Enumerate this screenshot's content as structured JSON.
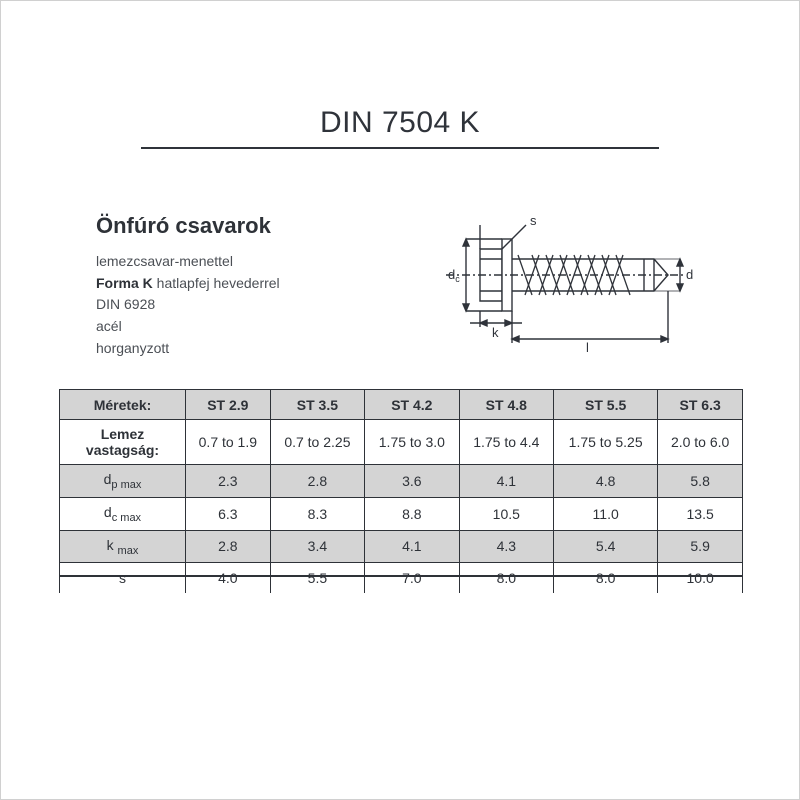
{
  "title": "DIN 7504 K",
  "subtitle": "Önfúró csavarok",
  "description": {
    "line1": "lemezcsavar-menettel",
    "line2_bold": "Forma K",
    "line2_rest": " hatlapfej hevederrel",
    "line3": "DIN 6928",
    "line4": "acél",
    "line5": "horganyzott"
  },
  "diagram": {
    "labels": {
      "s": "s",
      "dc": "d",
      "dc_sub": "c",
      "d": "d",
      "k": "k",
      "l": "l"
    },
    "colors": {
      "stroke": "#2f333a",
      "fill": "#ffffff"
    }
  },
  "table": {
    "header_label": "Méretek:",
    "columns": [
      "ST 2.9",
      "ST 3.5",
      "ST 4.2",
      "ST 4.8",
      "ST 5.5",
      "ST 6.3"
    ],
    "rows": [
      {
        "label_html": "Lemez vastagság:",
        "bold": true,
        "alt": false,
        "cells": [
          "0.7 to 1.9",
          "0.7 to 2.25",
          "1.75 to 3.0",
          "1.75 to 4.4",
          "1.75 to 5.25",
          "2.0 to 6.0"
        ]
      },
      {
        "label_html": "d<span class='sub'>p max</span>",
        "bold": false,
        "alt": true,
        "cells": [
          "2.3",
          "2.8",
          "3.6",
          "4.1",
          "4.8",
          "5.8"
        ]
      },
      {
        "label_html": "d<span class='sub'>c max</span>",
        "bold": false,
        "alt": false,
        "cells": [
          "6.3",
          "8.3",
          "8.8",
          "10.5",
          "11.0",
          "13.5"
        ]
      },
      {
        "label_html": "k <span class='sub'>max</span>",
        "bold": false,
        "alt": true,
        "cells": [
          "2.8",
          "3.4",
          "4.1",
          "4.3",
          "5.4",
          "5.9"
        ]
      },
      {
        "label_html": "s",
        "bold": false,
        "alt": false,
        "cells": [
          "4.0",
          "5.5",
          "7.0",
          "8.0",
          "8.0",
          "10.0"
        ]
      }
    ],
    "col_widths": {
      "label": 126,
      "data": 93
    },
    "colors": {
      "header_bg": "#d4d4d4",
      "alt_bg": "#d4d4d4",
      "border": "#2e3238",
      "text": "#2e3238"
    },
    "font_size": 14
  }
}
